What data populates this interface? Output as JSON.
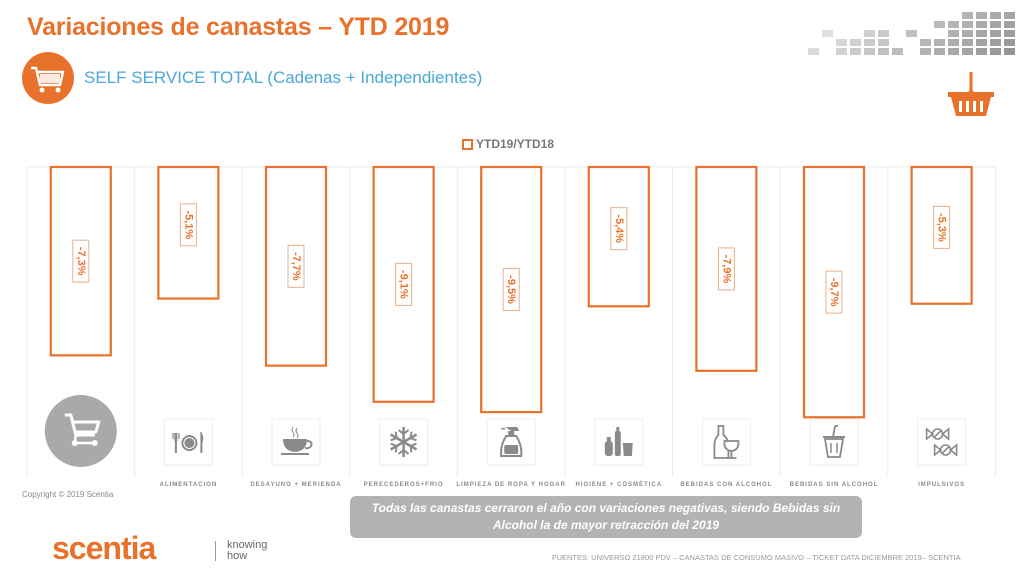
{
  "header": {
    "title": "Variaciones de canastas – YTD 2019",
    "subtitle": "SELF SERVICE TOTAL (Cadenas + Independientes)",
    "subtitle_icon": "shopping-cart-icon",
    "corner_icon": "shopping-basket-icon"
  },
  "colors": {
    "accent": "#e8722c",
    "subtitle": "#4aa8d6",
    "icon_gray": "#8a8a8a",
    "callout_bg": "#b3b3b3"
  },
  "chart_data": {
    "type": "bar",
    "title": "Variaciones de canastas – YTD 2019",
    "subtitle": "SELF SERVICE TOTAL (Cadenas + Independientes)",
    "legend": [
      "YTD19/YTD18"
    ],
    "legend_position": "top-center",
    "xlabel": "",
    "ylabel": "",
    "ylim": [
      -10,
      0
    ],
    "grid": false,
    "orientation": "vertical-hanging",
    "categories": [
      "Total",
      "Alimentacion",
      "Desayuno + Merienda",
      "Perecederos+Frio",
      "Limpieza de Ropa y Hogar",
      "Higiene + Cosmética",
      "Bebidas con Alcohol",
      "Bebidas sin Alcohol",
      "Impulsivos"
    ],
    "series": [
      {
        "name": "YTD19/YTD18",
        "values": [
          -7.3,
          -5.1,
          -7.7,
          -9.1,
          -9.5,
          -5.4,
          -7.9,
          -9.7,
          -5.3
        ],
        "labels": [
          "-7,3%",
          "-5,1%",
          "-7,7%",
          "-9,1%",
          "-9,5%",
          "-5,4%",
          "-7,9%",
          "-9,7%",
          "-5,3%"
        ]
      }
    ],
    "category_labels": [
      "",
      "ALIMENTACION",
      "DESAYUNO + MERIENDA",
      "PERECEDEROS+FRIO",
      "LIMPIEZA DE ROPA Y HOGAR",
      "HIGIENE + COSMÉTICA",
      "BEBIDAS CON ALCOHOL",
      "BEBIDAS SIN ALCOHOL",
      "IMPULSIVOS"
    ],
    "category_icons": [
      "shopping-cart-icon",
      "plate-cutlery-icon",
      "coffee-cup-icon",
      "snowflake-icon",
      "spray-bottle-icon",
      "cosmetics-bottles-icon",
      "wine-bottle-glass-icon",
      "soda-cup-straw-icon",
      "candy-icon"
    ]
  },
  "footer": {
    "copyright": "Copyright © 2019 Scentia",
    "callout": "Todas las canastas cerraron el año con variaciones negativas, siendo Bebidas sin Alcohol la de mayor retracción del 2019",
    "logo": "scentia",
    "tagline": "knowing how",
    "sources": "FUENTES: UNIVERSO 21800 PDV – CANASTAS DE CONSUMO MASIVO – TICKET DATA DICIEMBRE 2019– SCENTIA"
  }
}
